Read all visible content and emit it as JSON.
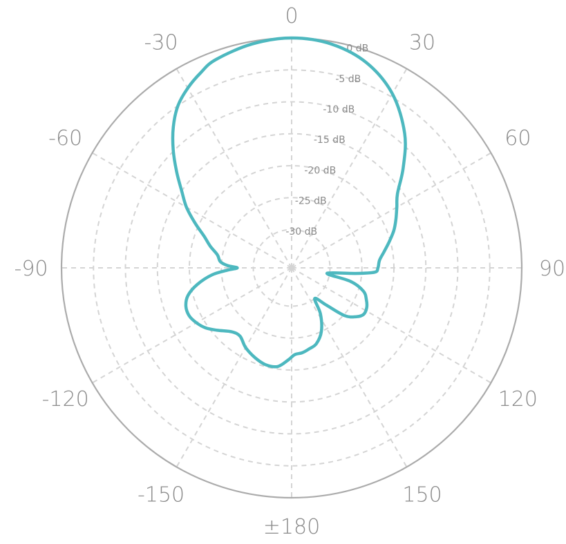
{
  "chart_data": {
    "type": "polar",
    "title": "",
    "angle_unit": "degrees",
    "radial_unit": "dB",
    "radial_range": [
      -36,
      0
    ],
    "grid": true,
    "angle_ticks": [
      {
        "angle": 0,
        "label": "0"
      },
      {
        "angle": 30,
        "label": "30"
      },
      {
        "angle": 60,
        "label": "60"
      },
      {
        "angle": 90,
        "label": "90"
      },
      {
        "angle": 120,
        "label": "120"
      },
      {
        "angle": 150,
        "label": "150"
      },
      {
        "angle": 180,
        "label": "±180"
      },
      {
        "angle": -150,
        "label": "-150"
      },
      {
        "angle": -120,
        "label": "-120"
      },
      {
        "angle": -90,
        "label": "-90"
      },
      {
        "angle": -60,
        "label": "-60"
      },
      {
        "angle": -30,
        "label": "-30"
      }
    ],
    "radial_ticks": [
      {
        "value": 0,
        "label": "0 dB"
      },
      {
        "value": -5,
        "label": "-5 dB"
      },
      {
        "value": -10,
        "label": "-10 dB"
      },
      {
        "value": -15,
        "label": "-15 dB"
      },
      {
        "value": -20,
        "label": "-20 dB"
      },
      {
        "value": -25,
        "label": "-25 dB"
      },
      {
        "value": -30,
        "label": "-30 dB"
      }
    ],
    "series": [
      {
        "color": "#4db8bf",
        "points": [
          [
            0,
            0.0
          ],
          [
            10,
            -0.4
          ],
          [
            20,
            -1.8
          ],
          [
            30,
            -4.5
          ],
          [
            40,
            -8.5
          ],
          [
            48,
            -12.5
          ],
          [
            55,
            -15.8
          ],
          [
            60,
            -17.0
          ],
          [
            65,
            -18.0
          ],
          [
            70,
            -19.0
          ],
          [
            75,
            -20.2
          ],
          [
            80,
            -21.3
          ],
          [
            85,
            -22.2
          ],
          [
            90,
            -22.5
          ],
          [
            93,
            -23.0
          ],
          [
            95,
            -26.0
          ],
          [
            97,
            -29.5
          ],
          [
            100,
            -30.2
          ],
          [
            103,
            -26.5
          ],
          [
            108,
            -24.2
          ],
          [
            113,
            -23.3
          ],
          [
            118,
            -22.7
          ],
          [
            123,
            -22.6
          ],
          [
            127,
            -23.3
          ],
          [
            132,
            -24.8
          ],
          [
            137,
            -28.0
          ],
          [
            143,
            -30.0
          ],
          [
            148,
            -27.5
          ],
          [
            155,
            -25.0
          ],
          [
            162,
            -23.5
          ],
          [
            168,
            -23.0
          ],
          [
            173,
            -22.6
          ],
          [
            178,
            -22.4
          ],
          [
            -178,
            -21.6
          ],
          [
            -172,
            -20.4
          ],
          [
            -165,
            -20.3
          ],
          [
            -158,
            -20.8
          ],
          [
            -150,
            -21.6
          ],
          [
            -143,
            -22.6
          ],
          [
            -137,
            -22.3
          ],
          [
            -130,
            -20.8
          ],
          [
            -125,
            -19.6
          ],
          [
            -120,
            -18.8
          ],
          [
            -115,
            -18.3
          ],
          [
            -110,
            -18.4
          ],
          [
            -105,
            -19.2
          ],
          [
            -100,
            -21.0
          ],
          [
            -95,
            -23.5
          ],
          [
            -92,
            -26.0
          ],
          [
            -90,
            -27.5
          ],
          [
            -88,
            -26.0
          ],
          [
            -85,
            -24.8
          ],
          [
            -80,
            -24.2
          ],
          [
            -75,
            -22.8
          ],
          [
            -70,
            -21.4
          ],
          [
            -65,
            -19.3
          ],
          [
            -60,
            -17.0
          ],
          [
            -55,
            -15.0
          ],
          [
            -50,
            -12.5
          ],
          [
            -45,
            -9.8
          ],
          [
            -40,
            -7.2
          ],
          [
            -35,
            -5.0
          ],
          [
            -30,
            -3.5
          ],
          [
            -25,
            -2.3
          ],
          [
            -20,
            -1.3
          ],
          [
            -10,
            -0.4
          ],
          [
            0,
            0.0
          ]
        ]
      }
    ]
  }
}
